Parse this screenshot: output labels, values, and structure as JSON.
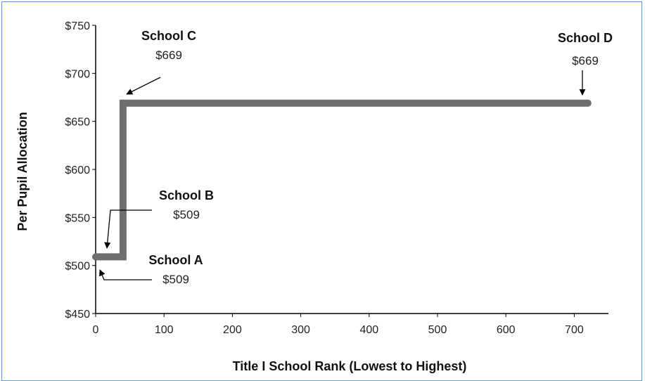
{
  "chart_data": {
    "type": "line",
    "title": "",
    "xlabel": "Title I School Rank (Lowest to Highest)",
    "ylabel": "Per Pupil Allocation",
    "xlim": [
      0,
      750
    ],
    "ylim": [
      450,
      750
    ],
    "x_ticks": [
      0,
      100,
      200,
      300,
      400,
      500,
      600,
      700
    ],
    "x_tick_labels": [
      "0",
      "100",
      "200",
      "300",
      "400",
      "500",
      "600",
      "700"
    ],
    "y_ticks": [
      450,
      500,
      550,
      600,
      650,
      700,
      750
    ],
    "y_tick_labels": [
      "$450",
      "$500",
      "$550",
      "$600",
      "$650",
      "$700",
      "$750"
    ],
    "grid": false,
    "series": [
      {
        "color": "#6e6e6e",
        "x": [
          0,
          40,
          40,
          720
        ],
        "y": [
          509,
          509,
          669,
          669
        ]
      }
    ],
    "annotations": [
      {
        "name": "School A",
        "value": "$509",
        "x": 0,
        "y": 509
      },
      {
        "name": "School B",
        "value": "$509",
        "x": 25,
        "y": 509
      },
      {
        "name": "School C",
        "value": "$669",
        "x": 40,
        "y": 669
      },
      {
        "name": "School D",
        "value": "$669",
        "x": 710,
        "y": 669
      }
    ]
  }
}
